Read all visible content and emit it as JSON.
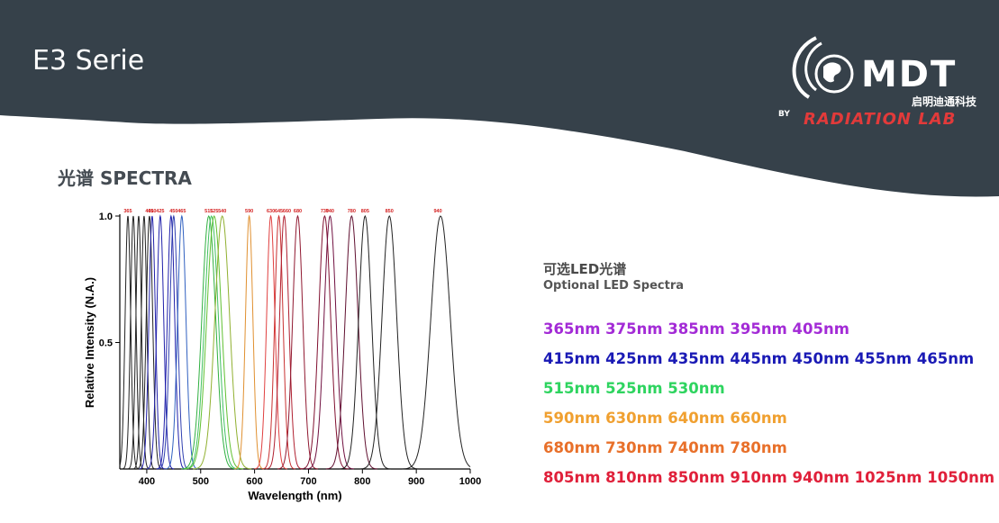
{
  "header": {
    "title": "E3 Serie",
    "bg_color": "#36414a"
  },
  "logo": {
    "brand": "MDT",
    "cn_name": "启明迪通科技",
    "by": "BY",
    "subtitle": "RADIATION LAB"
  },
  "section": {
    "title": "光谱  SPECTRA"
  },
  "optional": {
    "title": "可选LED光谱",
    "subtitle": "Optional LED Spectra",
    "rows": [
      {
        "text": "365nm 375nm 385nm 395nm 405nm",
        "color": "#a32bd6"
      },
      {
        "text": "415nm 425nm 435nm 445nm 450nm 455nm 465nm",
        "color": "#1a1ab5"
      },
      {
        "text": "515nm 525nm 530nm",
        "color": "#2ed45f"
      },
      {
        "text": "590nm 630nm 640nm 660nm",
        "color": "#f0a030"
      },
      {
        "text": "680nm 730nm 740nm 780nm",
        "color": "#e8702a"
      },
      {
        "text": "805nm 810nm 850nm 910nm 940nm 1025nm 1050nm",
        "color": "#e0203a"
      }
    ]
  },
  "chart_data": {
    "type": "line",
    "xlabel": "Wavelength (nm)",
    "ylabel": "Relative Intensity (N.A.)",
    "xlim": [
      350,
      1000
    ],
    "ylim": [
      0,
      1.0
    ],
    "xticks": [
      400,
      500,
      600,
      700,
      800,
      900,
      1000
    ],
    "yticks": [
      0.5,
      1.0
    ],
    "grid": false,
    "peak_labels": [
      "365",
      "405",
      "410",
      "425",
      "450",
      "465",
      "515",
      "525",
      "540",
      "590",
      "630",
      "645",
      "660",
      "680",
      "730",
      "740",
      "780",
      "805",
      "850",
      "940"
    ],
    "label_color": "#d42020",
    "series": [
      {
        "peak": 365,
        "fwhm": 12,
        "color": "#222222"
      },
      {
        "peak": 375,
        "fwhm": 12,
        "color": "#222222"
      },
      {
        "peak": 385,
        "fwhm": 12,
        "color": "#222222"
      },
      {
        "peak": 395,
        "fwhm": 12,
        "color": "#222222"
      },
      {
        "peak": 405,
        "fwhm": 14,
        "color": "#222222"
      },
      {
        "peak": 410,
        "fwhm": 14,
        "color": "#2020aa"
      },
      {
        "peak": 425,
        "fwhm": 15,
        "color": "#2020aa"
      },
      {
        "peak": 445,
        "fwhm": 16,
        "color": "#2020aa"
      },
      {
        "peak": 450,
        "fwhm": 17,
        "color": "#3040b0"
      },
      {
        "peak": 465,
        "fwhm": 18,
        "color": "#3060c0"
      },
      {
        "peak": 515,
        "fwhm": 30,
        "color": "#30b040"
      },
      {
        "peak": 520,
        "fwhm": 30,
        "color": "#40c060"
      },
      {
        "peak": 525,
        "fwhm": 32,
        "color": "#60c030"
      },
      {
        "peak": 540,
        "fwhm": 32,
        "color": "#90b030"
      },
      {
        "peak": 590,
        "fwhm": 16,
        "color": "#e09030"
      },
      {
        "peak": 630,
        "fwhm": 18,
        "color": "#e04040"
      },
      {
        "peak": 645,
        "fwhm": 18,
        "color": "#c83030"
      },
      {
        "peak": 655,
        "fwhm": 20,
        "color": "#b02030"
      },
      {
        "peak": 680,
        "fwhm": 22,
        "color": "#901830"
      },
      {
        "peak": 730,
        "fwhm": 26,
        "color": "#801030"
      },
      {
        "peak": 740,
        "fwhm": 26,
        "color": "#701040"
      },
      {
        "peak": 780,
        "fwhm": 28,
        "color": "#601030"
      },
      {
        "peak": 805,
        "fwhm": 28,
        "color": "#222222"
      },
      {
        "peak": 850,
        "fwhm": 32,
        "color": "#222222"
      },
      {
        "peak": 945,
        "fwhm": 42,
        "color": "#222222"
      }
    ]
  }
}
